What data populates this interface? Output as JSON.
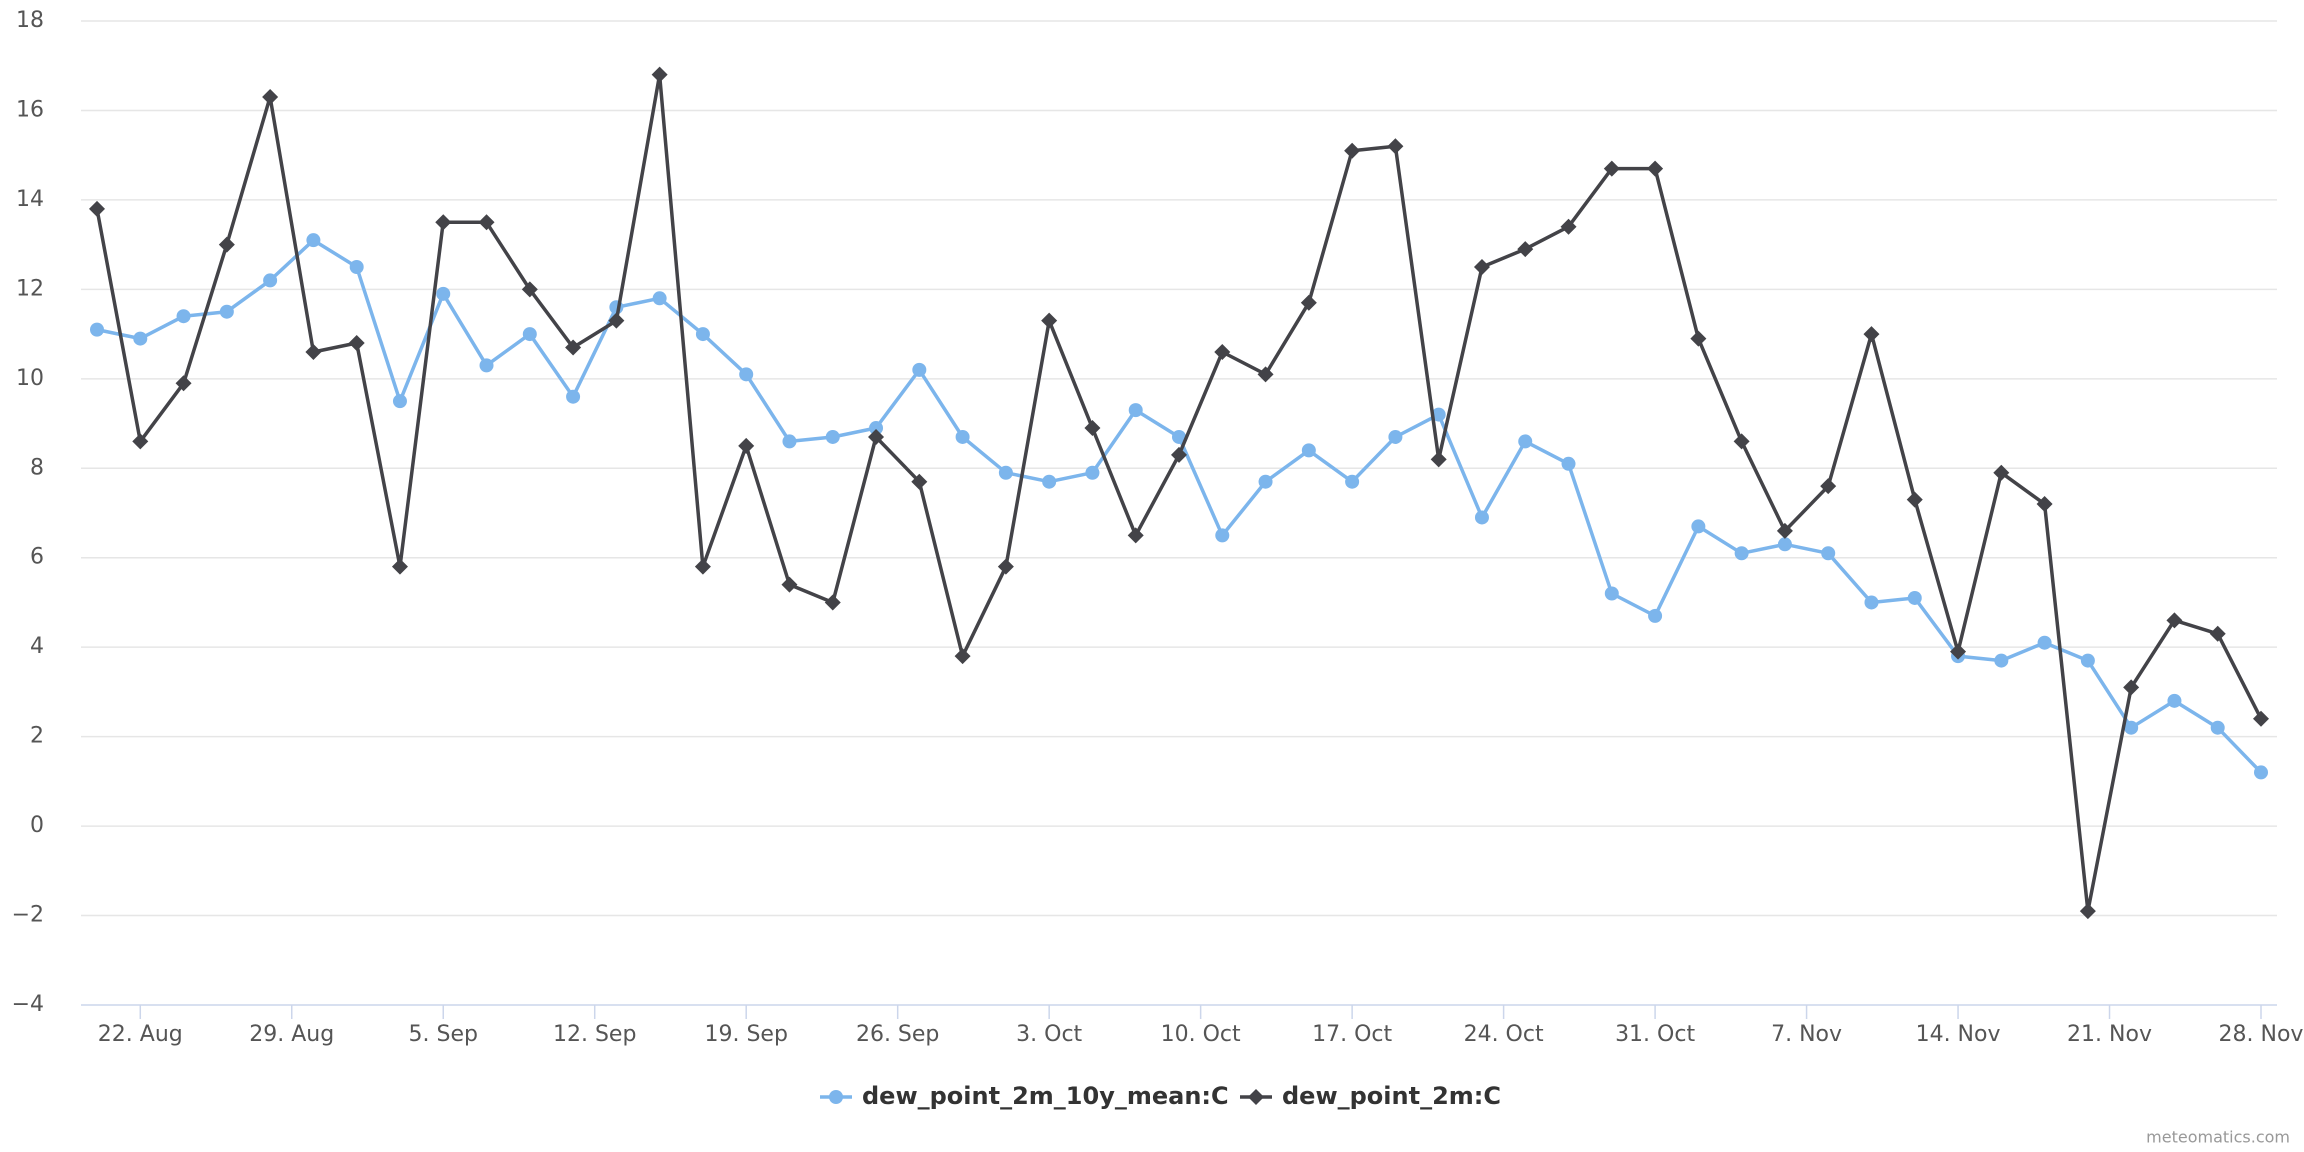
{
  "chart_data": {
    "type": "line",
    "x": [
      "20. Aug",
      "22. Aug",
      "24. Aug",
      "26. Aug",
      "28. Aug",
      "30. Aug",
      "1. Sep",
      "3. Sep",
      "5. Sep",
      "7. Sep",
      "9. Sep",
      "11. Sep",
      "13. Sep",
      "15. Sep",
      "17. Sep",
      "19. Sep",
      "21. Sep",
      "23. Sep",
      "25. Sep",
      "27. Sep",
      "29. Sep",
      "1. Oct",
      "3. Oct",
      "5. Oct",
      "7. Oct",
      "9. Oct",
      "11. Oct",
      "13. Oct",
      "15. Oct",
      "17. Oct",
      "19. Oct",
      "21. Oct",
      "23. Oct",
      "25. Oct",
      "27. Oct",
      "29. Oct",
      "31. Oct",
      "2. Nov",
      "4. Nov",
      "6. Nov",
      "8. Nov",
      "10. Nov",
      "12. Nov",
      "14. Nov",
      "16. Nov",
      "18. Nov",
      "20. Nov",
      "22. Nov",
      "24. Nov",
      "26. Nov",
      "28. Nov"
    ],
    "series": [
      {
        "name": "dew_point_2m_10y_mean:C",
        "color": "#7cb5ec",
        "marker": "circle",
        "values": [
          11.1,
          10.9,
          11.4,
          11.5,
          12.2,
          13.1,
          12.5,
          9.5,
          11.9,
          10.3,
          11.0,
          9.6,
          11.6,
          11.8,
          11.0,
          10.1,
          8.6,
          8.7,
          8.9,
          10.2,
          8.7,
          7.9,
          7.7,
          7.9,
          9.3,
          8.7,
          6.5,
          7.7,
          8.4,
          7.7,
          8.7,
          9.2,
          6.9,
          8.6,
          8.1,
          5.2,
          4.7,
          6.7,
          6.1,
          6.3,
          6.1,
          5.0,
          5.1,
          3.8,
          3.7,
          4.1,
          3.7,
          2.2,
          2.8,
          2.2,
          1.2
        ]
      },
      {
        "name": "dew_point_2m:C",
        "color": "#434348",
        "marker": "diamond",
        "values": [
          13.8,
          8.6,
          9.9,
          13.0,
          16.3,
          10.6,
          10.8,
          5.8,
          13.5,
          13.5,
          12.0,
          10.7,
          11.3,
          16.8,
          5.8,
          8.5,
          5.4,
          5.0,
          8.7,
          7.7,
          3.8,
          5.8,
          11.3,
          8.9,
          6.5,
          8.3,
          10.6,
          10.1,
          11.7,
          15.1,
          15.2,
          8.2,
          12.5,
          12.9,
          13.4,
          14.7,
          14.7,
          10.9,
          8.6,
          6.6,
          7.6,
          11.0,
          7.3,
          3.9,
          7.9,
          7.2,
          -1.9,
          3.1,
          4.6,
          4.3,
          2.4
        ]
      }
    ],
    "xticks": [
      "22. Aug",
      "29. Aug",
      "5. Sep",
      "12. Sep",
      "19. Sep",
      "26. Sep",
      "3. Oct",
      "10. Oct",
      "17. Oct",
      "24. Oct",
      "31. Oct",
      "7. Nov",
      "14. Nov",
      "21. Nov",
      "28. Nov"
    ],
    "ylim": [
      -4,
      18
    ],
    "yticks": [
      {
        "value": -4,
        "label": "−4"
      },
      {
        "value": -2,
        "label": "−2"
      },
      0,
      2,
      4,
      6,
      8,
      10,
      12,
      14,
      16,
      18
    ],
    "grid": true,
    "legend": "bottom",
    "credit": "meteomatics.com"
  }
}
